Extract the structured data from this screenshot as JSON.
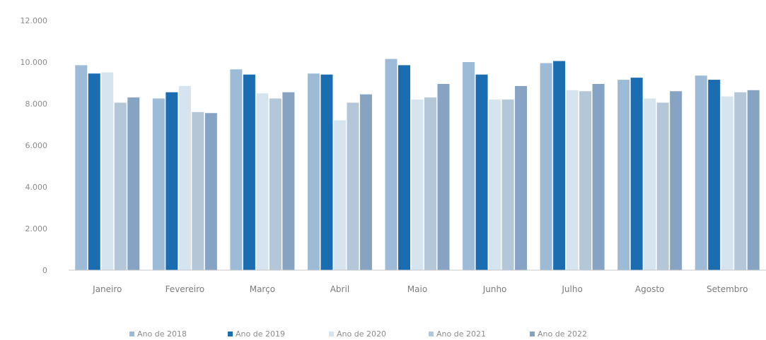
{
  "chart_data": {
    "type": "bar",
    "categories": [
      "Janeiro",
      "Fevereiro",
      "Março",
      "Abril",
      "Maio",
      "Junho",
      "Julho",
      "Agosto",
      "Setembro"
    ],
    "series": [
      {
        "name": "Ano de 2018",
        "color": "#9dbad6",
        "values": [
          9850,
          8250,
          9650,
          9450,
          10150,
          10000,
          9950,
          9150,
          9350
        ]
      },
      {
        "name": "Ano de 2019",
        "color": "#1b6db1",
        "values": [
          9450,
          8550,
          9400,
          9400,
          9850,
          9400,
          10050,
          9250,
          9150
        ]
      },
      {
        "name": "Ano de 2020",
        "color": "#d6e4ef",
        "values": [
          9500,
          8850,
          8500,
          7200,
          8200,
          8200,
          8650,
          8250,
          8350
        ]
      },
      {
        "name": "Ano de 2021",
        "color": "#b3c7d9",
        "values": [
          8050,
          7600,
          8250,
          8050,
          8300,
          8200,
          8600,
          8050,
          8550
        ]
      },
      {
        "name": "Ano de 2022",
        "color": "#87a3c3",
        "values": [
          8300,
          7550,
          8550,
          8450,
          8950,
          8850,
          8950,
          8600,
          8650
        ]
      }
    ],
    "yticks": [
      "0",
      "2.000",
      "4.000",
      "6.000",
      "8.000",
      "10.000",
      "12.000"
    ],
    "ylim": [
      0,
      12000
    ],
    "legend_position": "bottom",
    "grid": false
  }
}
